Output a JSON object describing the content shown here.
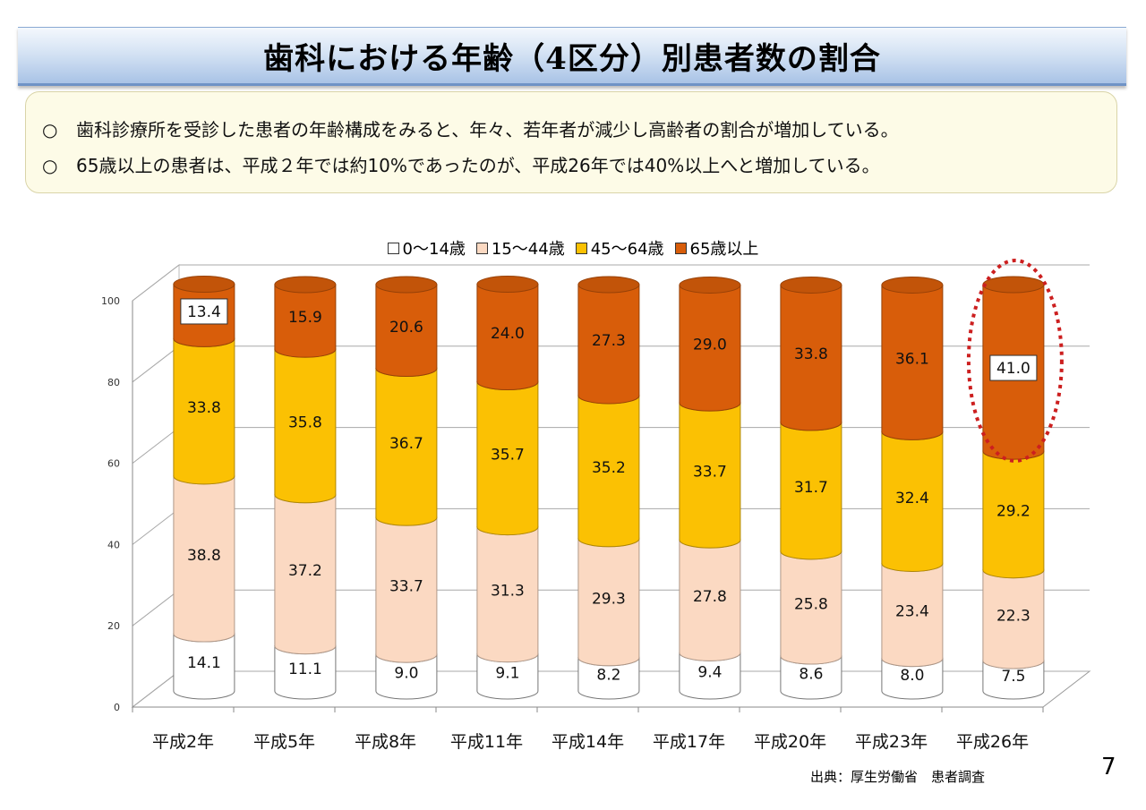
{
  "title": "歯科における年齢（4区分）別患者数の割合",
  "notes": [
    {
      "mark": "○",
      "text": "歯科診療所を受診した患者の年齢構成をみると、年々、若年者が減少し高齢者の割合が増加している。"
    },
    {
      "mark": "○",
      "text": "65歳以上の患者は、平成２年では約10%であったのが、平成26年では40%以上へと増加している。"
    }
  ],
  "legend": [
    {
      "label": "0～14歳",
      "color": "#ffffff"
    },
    {
      "label": "15～44歳",
      "color": "#fbd9c2"
    },
    {
      "label": "45～64歳",
      "color": "#fbc103"
    },
    {
      "label": "65歳以上",
      "color": "#d85d0a"
    }
  ],
  "chart_data": {
    "type": "bar",
    "stacked": true,
    "categories": [
      "平成2年",
      "平成5年",
      "平成8年",
      "平成11年",
      "平成14年",
      "平成17年",
      "平成20年",
      "平成23年",
      "平成26年"
    ],
    "series": [
      {
        "name": "0～14歳",
        "color": "#ffffff",
        "values": [
          14.1,
          11.1,
          9.0,
          9.1,
          8.2,
          9.4,
          8.6,
          8.0,
          7.5
        ]
      },
      {
        "name": "15～44歳",
        "color": "#fbd9c2",
        "values": [
          38.8,
          37.2,
          33.7,
          31.3,
          29.3,
          27.8,
          25.8,
          23.4,
          22.3
        ]
      },
      {
        "name": "45～64歳",
        "color": "#fbc103",
        "values": [
          33.8,
          35.8,
          36.7,
          35.7,
          35.2,
          33.7,
          31.7,
          32.4,
          29.2
        ]
      },
      {
        "name": "65歳以上",
        "color": "#d85d0a",
        "values": [
          13.4,
          15.9,
          20.6,
          24.0,
          27.3,
          29.0,
          33.8,
          36.1,
          41.0
        ]
      }
    ],
    "value_labels": [
      [
        "14.1",
        "11.1",
        "9.0",
        "9.1",
        "8.2",
        "9.4",
        "8.6",
        "8.0",
        "7.5"
      ],
      [
        "38.8",
        "37.2",
        "33.7",
        "31.3",
        "29.3",
        "27.8",
        "25.8",
        "23.4",
        "22.3"
      ],
      [
        "33.8",
        "35.8",
        "36.7",
        "35.7",
        "35.2",
        "33.7",
        "31.7",
        "32.4",
        "29.2"
      ],
      [
        "13.4",
        "15.9",
        "20.6",
        "24.0",
        "27.3",
        "29.0",
        "33.8",
        "36.1",
        "41.0"
      ]
    ],
    "yticks": [
      "0",
      "20",
      "40",
      "60",
      "80",
      "100"
    ],
    "ylim": [
      0,
      100
    ],
    "grid": true,
    "legend_position": "top",
    "highlight": {
      "category": "平成26年",
      "color": "#cc1f1f"
    }
  },
  "source": "出典：厚生労働省　患者調査",
  "page_number": "7"
}
